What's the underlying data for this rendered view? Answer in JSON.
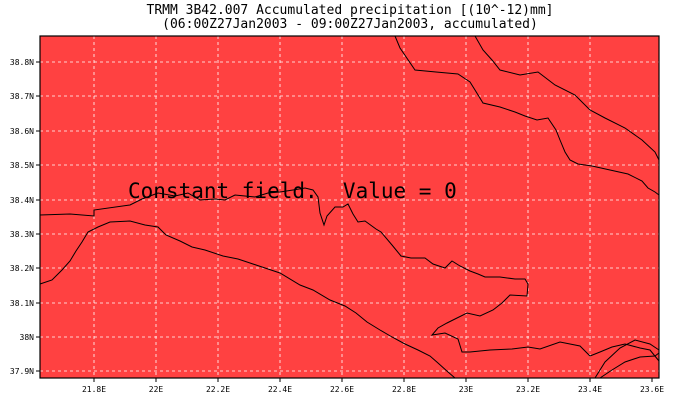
{
  "map": {
    "title_line1": "TRMM 3B42.007 Accumulated precipitation [(10^-12)mm]",
    "title_line2": "(06:00Z27Jan2003 - 09:00Z27Jan2003, accumulated)",
    "message": "Constant field.  Value = 0",
    "field_value": 0,
    "fill_color": "#ff4141",
    "lat_labels": [
      "38.8N",
      "38.7N",
      "38.6N",
      "38.5N",
      "38.4N",
      "38.3N",
      "38.2N",
      "38.1N",
      "38N",
      "37.9N"
    ],
    "lon_labels": [
      "21.8E",
      "22E",
      "22.2E",
      "22.4E",
      "22.6E",
      "22.8E",
      "23E",
      "23.2E",
      "23.4E",
      "23.6E"
    ]
  }
}
